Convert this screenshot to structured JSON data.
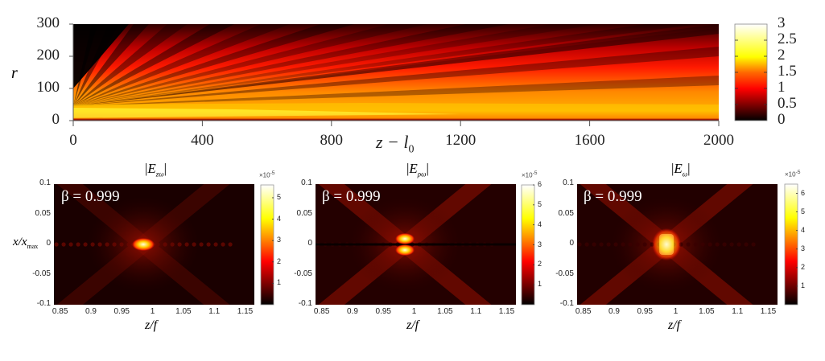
{
  "chart_data": [
    {
      "type": "heatmap",
      "title": "",
      "xlabel": "z - l0",
      "xlabel_main": "z − l",
      "xlabel_sub": "0",
      "ylabel": "r",
      "xlim": [
        0,
        2000
      ],
      "ylim": [
        0,
        300
      ],
      "xticks": [
        "0",
        "400",
        "800",
        "1200",
        "1600",
        "2000"
      ],
      "xtick_values": [
        0,
        400,
        800,
        1200,
        1600,
        2000
      ],
      "yticks": [
        "0",
        "100",
        "200",
        "300"
      ],
      "ytick_values": [
        0,
        100,
        200,
        300
      ],
      "colormap": "hot",
      "colorbar": {
        "range": [
          0,
          3
        ],
        "ticks": [
          "0",
          "0.5",
          "1",
          "1.5",
          "2",
          "2.5",
          "3"
        ],
        "tick_values": [
          0,
          0.5,
          1,
          1.5,
          2,
          2.5,
          3
        ]
      }
    },
    {
      "type": "heatmap",
      "title": "|E_zω|",
      "title_sub": "zω",
      "annotation": "β = 0.999",
      "xlabel": "z/f",
      "ylabel": "x/x_max",
      "ylabel_sub": "max",
      "xlim": [
        0.84,
        1.165
      ],
      "ylim": [
        -0.1,
        0.1
      ],
      "xticks": [
        "0.85",
        "0.9",
        "0.95",
        "1",
        "1.05",
        "1.1",
        "1.15"
      ],
      "xtick_values": [
        0.85,
        0.9,
        0.95,
        1,
        1.05,
        1.1,
        1.15
      ],
      "yticks": [
        "0.1",
        "0.05",
        "0",
        "-0.05",
        "-0.1"
      ],
      "ytick_values": [
        0.1,
        0.05,
        0,
        -0.05,
        -0.1
      ],
      "colormap": "hot",
      "colorbar": {
        "range": [
          0,
          5.6
        ],
        "exponent": "×10",
        "exponent_power": "-5",
        "ticks": [
          "1",
          "2",
          "3",
          "4",
          "5"
        ],
        "tick_values": [
          1,
          2,
          3,
          4,
          5
        ]
      },
      "peak": {
        "z": 0.985,
        "x": 0,
        "pattern": "single"
      }
    },
    {
      "type": "heatmap",
      "title": "|E_ρω|",
      "title_sub": "ρω",
      "annotation": "β = 0.999",
      "xlabel": "z/f",
      "xlim": [
        0.84,
        1.165
      ],
      "ylim": [
        -0.1,
        0.1
      ],
      "xticks": [
        "0.85",
        "0.9",
        "0.95",
        "1",
        "1.05",
        "1.1",
        "1.15"
      ],
      "xtick_values": [
        0.85,
        0.9,
        0.95,
        1,
        1.05,
        1.1,
        1.15
      ],
      "yticks": [
        "0.1",
        "0.05",
        "0",
        "-0.05",
        "-0.1"
      ],
      "ytick_values": [
        0.1,
        0.05,
        0,
        -0.05,
        -0.1
      ],
      "colormap": "hot",
      "colorbar": {
        "range": [
          0,
          6
        ],
        "exponent": "×10",
        "exponent_power": "-5",
        "ticks": [
          "1",
          "2",
          "3",
          "4",
          "5",
          "6"
        ],
        "tick_values": [
          1,
          2,
          3,
          4,
          5,
          6
        ]
      },
      "peak": {
        "z": 0.985,
        "x": 0,
        "pattern": "double"
      }
    },
    {
      "type": "heatmap",
      "title": "|E_ω|",
      "title_sub": "ω",
      "annotation": "β = 0.999",
      "xlabel": "z/f",
      "xlim": [
        0.84,
        1.165
      ],
      "ylim": [
        -0.1,
        0.1
      ],
      "xticks": [
        "0.85",
        "0.9",
        "0.95",
        "1",
        "1.05",
        "1.1",
        "1.15"
      ],
      "xtick_values": [
        0.85,
        0.9,
        0.95,
        1,
        1.05,
        1.1,
        1.15
      ],
      "yticks": [
        "0.1",
        "0.05",
        "0",
        "-0.05",
        "-0.1"
      ],
      "ytick_values": [
        0.1,
        0.05,
        0,
        -0.05,
        -0.1
      ],
      "colormap": "hot",
      "colorbar": {
        "range": [
          0,
          6.5
        ],
        "exponent": "×10",
        "exponent_power": "-5",
        "ticks": [
          "1",
          "2",
          "3",
          "4",
          "5",
          "6"
        ],
        "tick_values": [
          1,
          2,
          3,
          4,
          5,
          6
        ]
      },
      "peak": {
        "z": 0.985,
        "x": 0,
        "pattern": "block"
      }
    }
  ],
  "colors": {
    "hot_black": "#000000",
    "hot_darkred": "#5a0000",
    "hot_red": "#ff0000",
    "hot_orange": "#ff8c00",
    "hot_yellow": "#ffff00",
    "hot_white": "#ffffff"
  }
}
